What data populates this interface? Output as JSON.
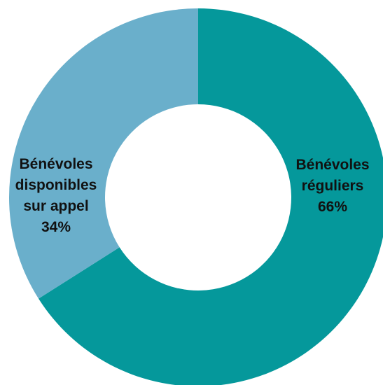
{
  "chart_data": {
    "type": "pie",
    "donut": true,
    "title": "",
    "slices": [
      {
        "label_lines": [
          "Bénévoles",
          "réguliers",
          "66%"
        ],
        "value": 66,
        "color": "#05989b"
      },
      {
        "label_lines": [
          "Bénévoles",
          "disponibles",
          "sur appel",
          "34%"
        ],
        "value": 34,
        "color": "#6aafcb"
      }
    ]
  }
}
